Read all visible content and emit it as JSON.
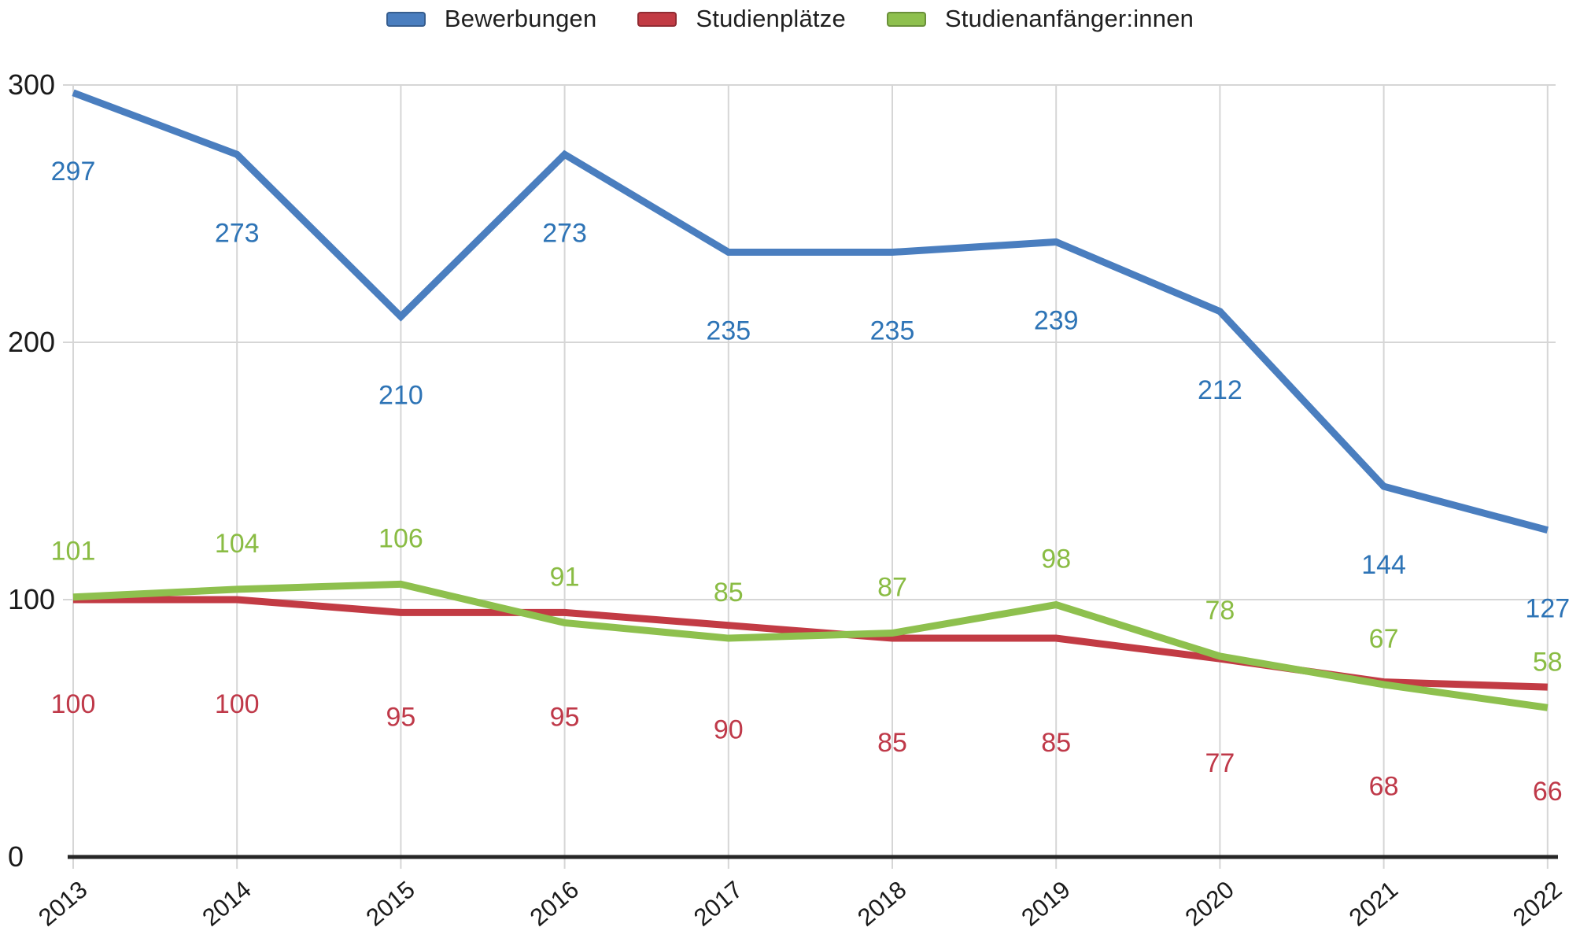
{
  "chart_data": {
    "type": "line",
    "title": "",
    "xlabel": "",
    "ylabel": "",
    "categories": [
      "2013",
      "2014",
      "2015",
      "2016",
      "2017",
      "2018",
      "2019",
      "2020",
      "2021",
      "2022"
    ],
    "series": [
      {
        "name": "Bewerbungen",
        "color": "#4a7ebf",
        "label_color": "#2e74b6",
        "values": [
          297,
          273,
          210,
          273,
          235,
          235,
          239,
          212,
          144,
          127
        ],
        "label_offset": 100
      },
      {
        "name": "Studienplätze",
        "color": "#c23b44",
        "label_color": "#bf3949",
        "values": [
          100,
          100,
          95,
          95,
          90,
          85,
          85,
          77,
          68,
          66
        ],
        "label_offset": 133
      },
      {
        "name": "Studienanfänger:innen",
        "color": "#8ec04e",
        "label_color": "#8abc44",
        "values": [
          101,
          104,
          106,
          91,
          85,
          87,
          98,
          78,
          67,
          58
        ],
        "label_offset": -58
      }
    ],
    "ylim": [
      0,
      300
    ],
    "yticks": [
      0,
      100,
      200,
      300
    ],
    "grid": true,
    "gridline_color": "#d6d6d6",
    "axis_line_color": "#262626",
    "tick_label_color": "#1a1a1a",
    "legend_position": "top",
    "x_tick_rotation_deg": -40
  }
}
